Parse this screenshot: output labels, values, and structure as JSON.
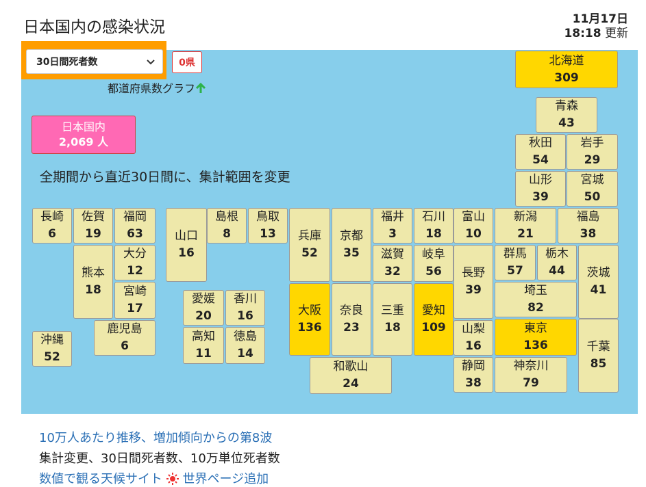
{
  "header": {
    "title": "日本国内の感染状況",
    "date": "11月17日",
    "time": "18:18",
    "updated": "更新"
  },
  "controls": {
    "selector": "30日間死者数",
    "pref_count": "0県",
    "graph_link": "都道府県数グラフ"
  },
  "national": {
    "label": "日本国内",
    "value": "2,069 人"
  },
  "note": "全期間から直近30日間に、集計範囲を変更",
  "tile_color": "#eee8aa",
  "highlight_color": "#ffd700",
  "prefectures": [
    {
      "name": "北海道",
      "value": 309,
      "highlight": true
    },
    {
      "name": "青森",
      "value": 43
    },
    {
      "name": "秋田",
      "value": 54
    },
    {
      "name": "岩手",
      "value": 29
    },
    {
      "name": "山形",
      "value": 39
    },
    {
      "name": "宮城",
      "value": 50
    },
    {
      "name": "長崎",
      "value": 6
    },
    {
      "name": "佐賀",
      "value": 19
    },
    {
      "name": "福岡",
      "value": 63
    },
    {
      "name": "山口",
      "value": 16
    },
    {
      "name": "島根",
      "value": 8
    },
    {
      "name": "鳥取",
      "value": 13
    },
    {
      "name": "兵庫",
      "value": 52
    },
    {
      "name": "京都",
      "value": 35
    },
    {
      "name": "福井",
      "value": 3
    },
    {
      "name": "石川",
      "value": 18
    },
    {
      "name": "富山",
      "value": 10
    },
    {
      "name": "新潟",
      "value": 21
    },
    {
      "name": "福島",
      "value": 38
    },
    {
      "name": "滋賀",
      "value": 32
    },
    {
      "name": "岐阜",
      "value": 56
    },
    {
      "name": "熊本",
      "value": 18
    },
    {
      "name": "大分",
      "value": 12
    },
    {
      "name": "群馬",
      "value": 57
    },
    {
      "name": "栃木",
      "value": 44
    },
    {
      "name": "茨城",
      "value": 41
    },
    {
      "name": "長野",
      "value": 39
    },
    {
      "name": "宮崎",
      "value": 17
    },
    {
      "name": "埼玉",
      "value": 82
    },
    {
      "name": "愛媛",
      "value": 20
    },
    {
      "name": "香川",
      "value": 16
    },
    {
      "name": "大阪",
      "value": 136,
      "highlight": true
    },
    {
      "name": "奈良",
      "value": 23
    },
    {
      "name": "三重",
      "value": 18
    },
    {
      "name": "愛知",
      "value": 109,
      "highlight": true
    },
    {
      "name": "高知",
      "value": 11
    },
    {
      "name": "徳島",
      "value": 14
    },
    {
      "name": "山梨",
      "value": 16
    },
    {
      "name": "東京",
      "value": 136,
      "highlight": true
    },
    {
      "name": "千葉",
      "value": 85
    },
    {
      "name": "沖縄",
      "value": 52
    },
    {
      "name": "鹿児島",
      "value": 6
    },
    {
      "name": "和歌山",
      "value": 24
    },
    {
      "name": "静岡",
      "value": 38
    },
    {
      "name": "神奈川",
      "value": 79
    }
  ],
  "footer": {
    "line1": "10万人あたり推移、増加傾向からの第8波",
    "line2": "集計変更、30日間死者数、10万単位死者数",
    "line3a": "数値で観る天候サイト",
    "line3b": "世界ページ追加"
  }
}
